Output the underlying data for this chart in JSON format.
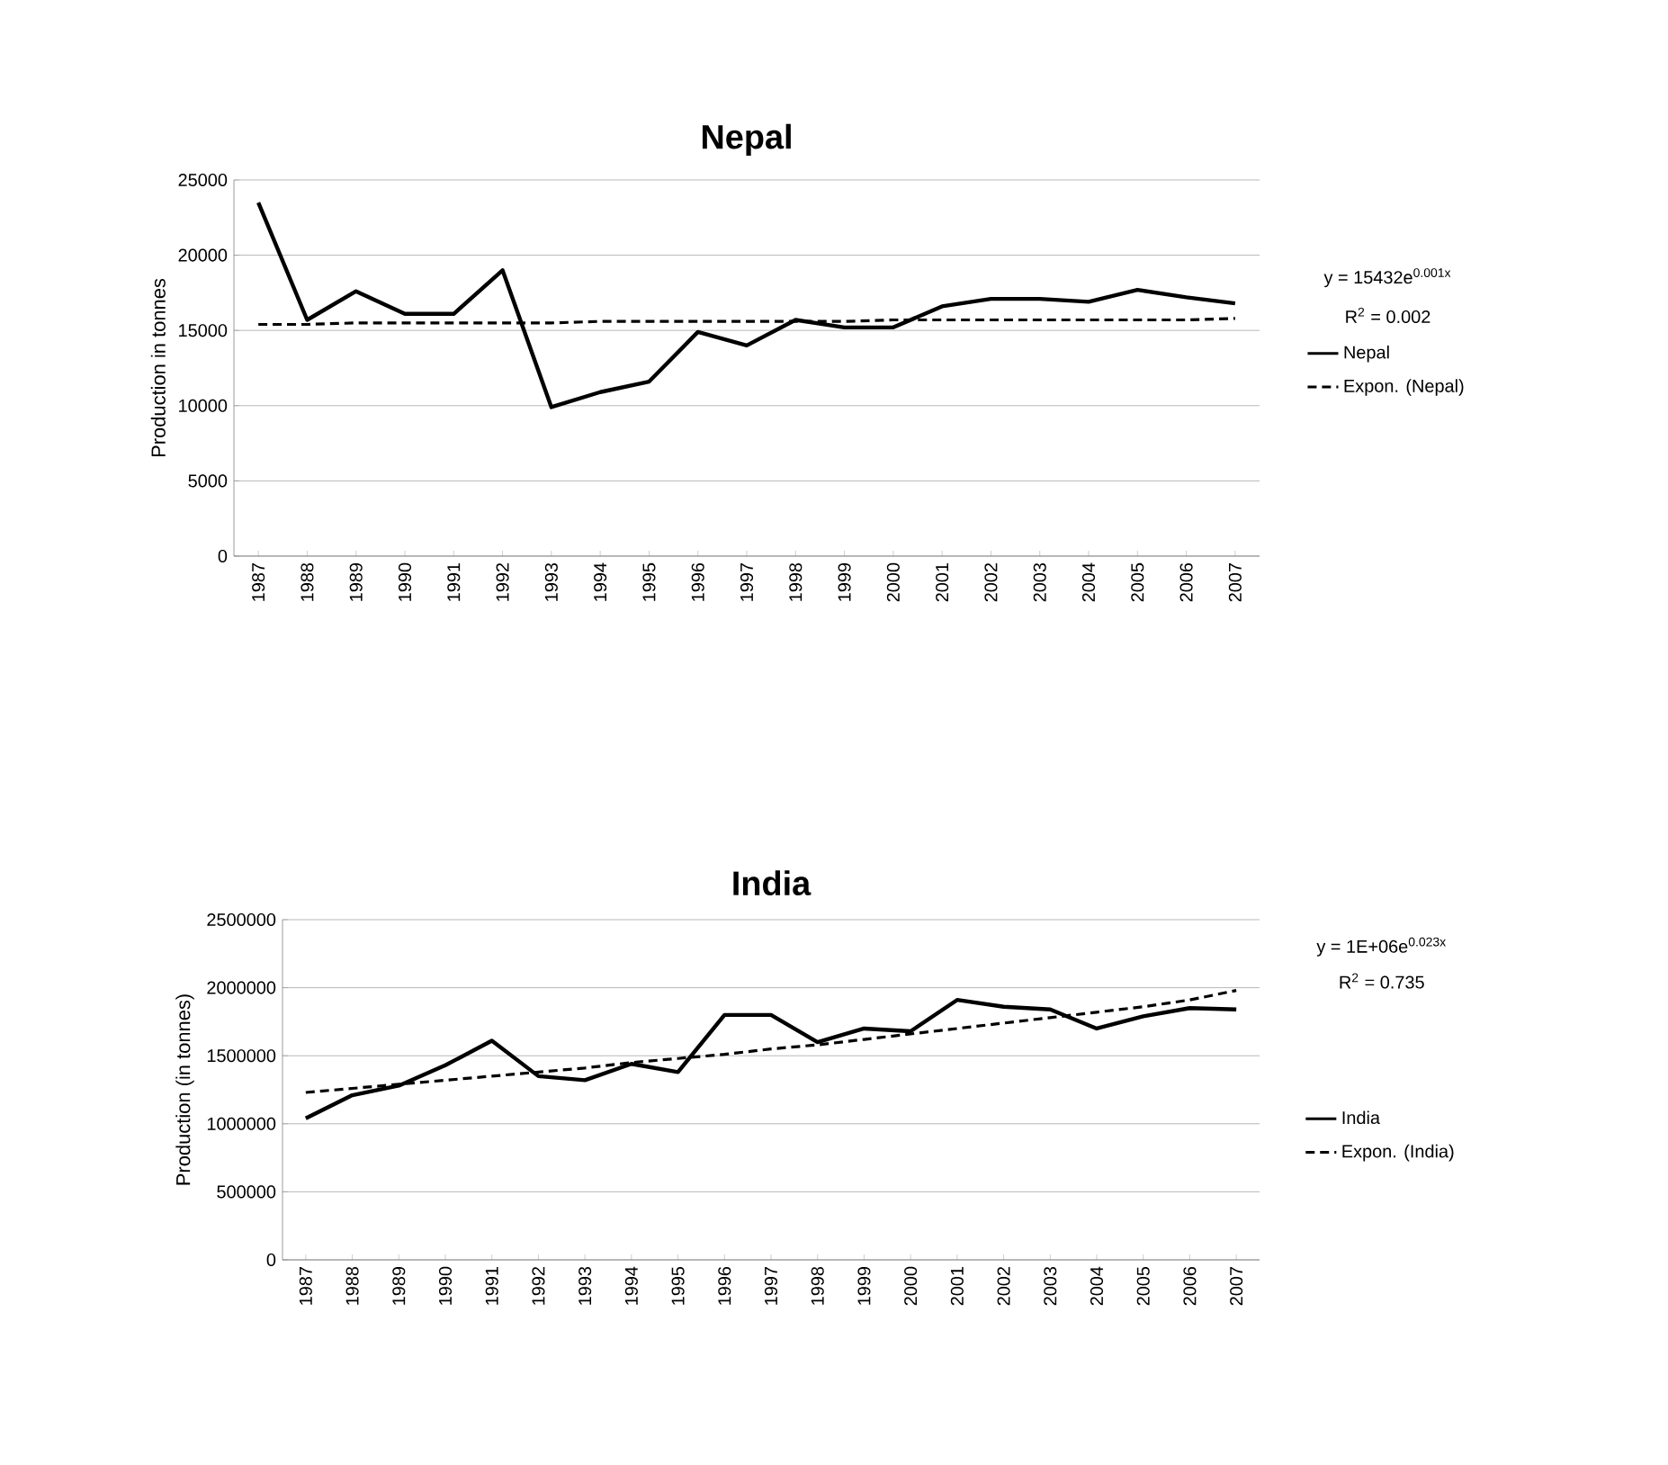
{
  "chart_data": [
    {
      "type": "line",
      "title": "Nepal",
      "ylabel": "Production in tonnes",
      "categories": [
        "1987",
        "1988",
        "1989",
        "1990",
        "1991",
        "1992",
        "1993",
        "1994",
        "1995",
        "1996",
        "1997",
        "1998",
        "1999",
        "2000",
        "2001",
        "2002",
        "2003",
        "2004",
        "2005",
        "2006",
        "2007"
      ],
      "series": [
        {
          "name": "Nepal",
          "color": "#000000",
          "line_style": "solid",
          "values": [
            23500,
            15700,
            17600,
            16100,
            16100,
            19000,
            9900,
            10900,
            11600,
            14900,
            14000,
            15700,
            15200,
            15200,
            16600,
            17100,
            17100,
            16900,
            17700,
            17200,
            16800
          ]
        },
        {
          "name": "Expon. (Nepal)",
          "color": "#000000",
          "line_style": "dashed",
          "values": [
            15400,
            15400,
            15500,
            15500,
            15500,
            15500,
            15500,
            15600,
            15600,
            15600,
            15600,
            15600,
            15600,
            15700,
            15700,
            15700,
            15700,
            15700,
            15700,
            15700,
            15800
          ]
        }
      ],
      "ylim": [
        0,
        25000
      ],
      "yticks": [
        0,
        5000,
        10000,
        15000,
        20000,
        25000
      ],
      "grid": "y",
      "legend": "right",
      "marker": "none",
      "annotations": [
        "y = 15432e$^{0.001x}$",
        "R$^{2}$ = 0.002"
      ]
    },
    {
      "type": "line",
      "title": "India",
      "ylabel": "Production (in tonnes)",
      "categories": [
        "1987",
        "1988",
        "1989",
        "1990",
        "1991",
        "1992",
        "1993",
        "1994",
        "1995",
        "1996",
        "1997",
        "1998",
        "1999",
        "2000",
        "2001",
        "2002",
        "2003",
        "2004",
        "2005",
        "2006",
        "2007"
      ],
      "series": [
        {
          "name": "India",
          "color": "#000000",
          "line_style": "solid",
          "values": [
            1040000,
            1210000,
            1280000,
            1430000,
            1610000,
            1350000,
            1320000,
            1440000,
            1380000,
            1800000,
            1800000,
            1600000,
            1700000,
            1680000,
            1910000,
            1860000,
            1840000,
            1700000,
            1790000,
            1850000,
            1840000
          ]
        },
        {
          "name": "Expon. (India)",
          "color": "#000000",
          "line_style": "dashed",
          "values": [
            1230000,
            1260000,
            1290000,
            1320000,
            1350000,
            1380000,
            1410000,
            1450000,
            1480000,
            1510000,
            1550000,
            1580000,
            1620000,
            1660000,
            1700000,
            1740000,
            1780000,
            1820000,
            1860000,
            1910000,
            1980000
          ]
        }
      ],
      "ylim": [
        0,
        2500000
      ],
      "yticks": [
        0,
        500000,
        1000000,
        1500000,
        2000000,
        2500000
      ],
      "grid": "y",
      "legend": "right",
      "marker": "none",
      "annotations": [
        "y = 1E+06e$^{0.023x}$",
        "R$^{2}$ = 0.735"
      ]
    }
  ]
}
